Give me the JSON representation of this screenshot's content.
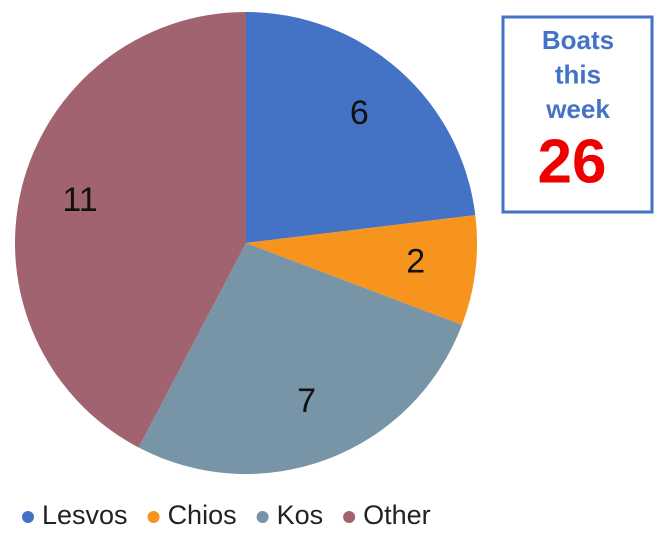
{
  "chart_data": {
    "type": "pie",
    "categories": [
      "Lesvos",
      "Chios",
      "Kos",
      "Other"
    ],
    "values": [
      6,
      2,
      7,
      11
    ],
    "colors": [
      "#4472c4",
      "#f7941d",
      "#7895a8",
      "#a1636f"
    ],
    "legend": "bottom",
    "annotation": {
      "text": "Boats this week",
      "value": 26
    }
  }
}
